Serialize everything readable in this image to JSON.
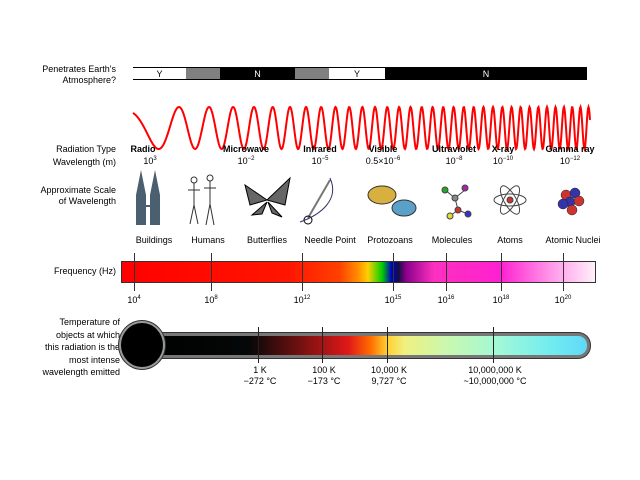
{
  "atmosphere": {
    "label_line1": "Penetrates Earth's",
    "label_line2": "Atmosphere?",
    "segments": [
      {
        "text": "Y",
        "color": "#ffffff"
      },
      {
        "text": "",
        "color": "#808080"
      },
      {
        "text": "N",
        "color": "#000000"
      },
      {
        "text": "",
        "color": "#808080"
      },
      {
        "text": "Y",
        "color": "#ffffff"
      },
      {
        "text": "N",
        "color": "#000000"
      }
    ]
  },
  "wave_color": "#ff0000",
  "row_labels": {
    "radiation_type": "Radiation Type",
    "wavelength": "Wavelength (m)",
    "scale_line1": "Approximate Scale",
    "scale_line2": "of Wavelength",
    "frequency": "Frequency (Hz)",
    "temp_lines": [
      "Temperature of",
      "objects at which",
      "this radiation is the",
      "most intense",
      "wavelength emitted"
    ]
  },
  "radiation": [
    {
      "type": "Radio",
      "wl_base": "10",
      "wl_exp": "3"
    },
    {
      "type": "Microwave",
      "wl_base": "10",
      "wl_exp": "−2"
    },
    {
      "type": "Infrared",
      "wl_base": "10",
      "wl_exp": "−5"
    },
    {
      "type": "Visible",
      "wl_base": "0.5×10",
      "wl_exp": "−6"
    },
    {
      "type": "Ultraviolet",
      "wl_base": "10",
      "wl_exp": "−8"
    },
    {
      "type": "X-ray",
      "wl_base": "10",
      "wl_exp": "−10"
    },
    {
      "type": "Gamma ray",
      "wl_base": "10",
      "wl_exp": "−12"
    }
  ],
  "scale_objects": [
    {
      "label": "Buildings",
      "icon": "buildings-icon"
    },
    {
      "label": "Humans",
      "icon": "humans-icon"
    },
    {
      "label": "Butterflies",
      "icon": "butterfly-icon"
    },
    {
      "label": "Needle Point",
      "icon": "needle-icon"
    },
    {
      "label": "Protozoans",
      "icon": "protozoan-icon"
    },
    {
      "label": "Molecules",
      "icon": "molecule-icon"
    },
    {
      "label": "Atoms",
      "icon": "atom-icon"
    },
    {
      "label": "Atomic Nuclei",
      "icon": "nucleus-icon"
    }
  ],
  "frequency_ticks": [
    {
      "base": "10",
      "exp": "4"
    },
    {
      "base": "10",
      "exp": "8"
    },
    {
      "base": "10",
      "exp": "12"
    },
    {
      "base": "10",
      "exp": "15"
    },
    {
      "base": "10",
      "exp": "16"
    },
    {
      "base": "10",
      "exp": "18"
    },
    {
      "base": "10",
      "exp": "20"
    }
  ],
  "temperature_ticks": [
    {
      "kelvin": "1 K",
      "celsius": "−272 °C"
    },
    {
      "kelvin": "100 K",
      "celsius": "−173 °C"
    },
    {
      "kelvin": "10,000 K",
      "celsius": "9,727 °C"
    },
    {
      "kelvin": "10,000,000 K",
      "celsius": "~10,000,000 °C"
    }
  ]
}
